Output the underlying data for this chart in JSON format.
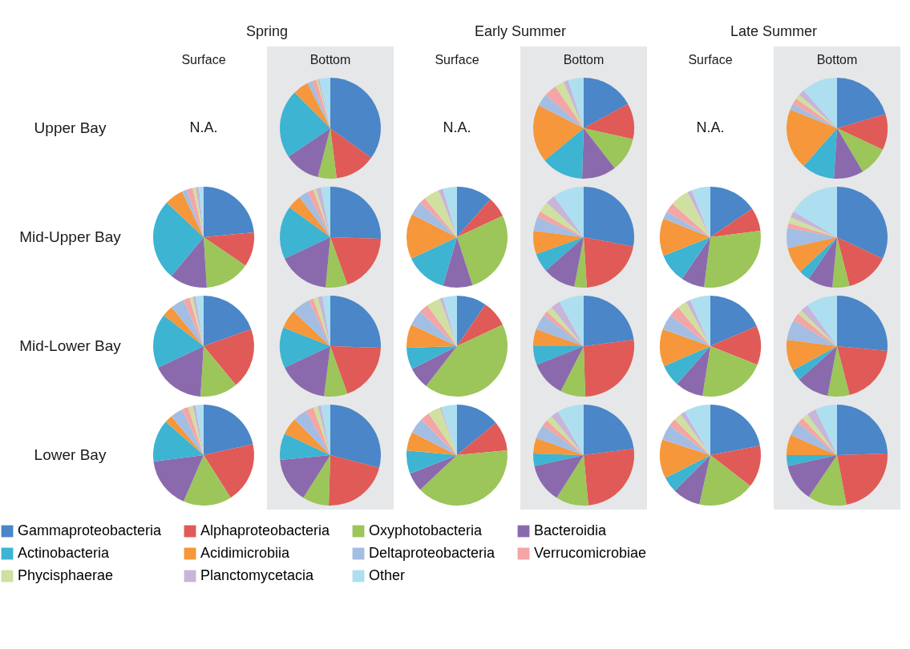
{
  "chart_data": [
    {
      "type": "other",
      "annotations": [
        "Spring",
        "Early Summer",
        "Late Summer"
      ]
    },
    {
      "type": "other",
      "title": "Surface",
      "ylabel": "Upper Bay",
      "annotations": [
        "N.A."
      ]
    },
    {
      "type": "pie",
      "title": "Bottom",
      "legend": "bottom",
      "categories": [
        "Gammaproteobacteria",
        "Alphaproteobacteria",
        "Oxyphotobacteria",
        "Bacteroidia",
        "Actinobacteria",
        "Acidimicrobiia",
        "Deltaproteobacteria",
        "Verrucomicrobiae",
        "Phycisphaerae",
        "Planctomycetacia",
        "Other"
      ],
      "colors": [
        "#4a86c8",
        "#e05a57",
        "#9cc55a",
        "#8a6aad",
        "#3cb4d2",
        "#f5973a",
        "#a4bde3",
        "#f4a5a5",
        "#cfe0a0",
        "#c7b5da",
        "#addff0"
      ],
      "values": [
        35,
        13,
        6,
        11.5,
        22,
        5,
        1.5,
        1.5,
        0.5,
        0.5,
        3.5
      ]
    },
    {
      "type": "other",
      "title": "Surface",
      "annotations": [
        "N.A."
      ]
    },
    {
      "type": "pie",
      "title": "Bottom",
      "categories": [
        null,
        null,
        null,
        null,
        null,
        null,
        null,
        null,
        null,
        null,
        null
      ],
      "colors": [
        "#4a86c8",
        "#e05a57",
        "#9cc55a",
        "#8a6aad",
        "#3cb4d2",
        "#f5973a",
        "#a4bde3",
        "#f4a5a5",
        "#cfe0a0",
        "#c7b5da",
        "#addff0"
      ],
      "values": [
        17,
        11.5,
        11,
        11,
        13.5,
        18.5,
        4,
        4,
        3,
        1.5,
        5
      ]
    },
    {
      "type": "other",
      "title": "Surface",
      "annotations": [
        "N.A."
      ]
    },
    {
      "type": "pie",
      "title": "Bottom",
      "categories": [
        null,
        null,
        null,
        null,
        null,
        null,
        null,
        null,
        null,
        null,
        null
      ],
      "colors": [
        "#4a86c8",
        "#e05a57",
        "#9cc55a",
        "#8a6aad",
        "#3cb4d2",
        "#f5973a",
        "#a4bde3",
        "#f4a5a5",
        "#cfe0a0",
        "#c7b5da",
        "#addff0"
      ],
      "values": [
        20.5,
        11.5,
        9.5,
        9.5,
        10.5,
        19.5,
        2,
        2,
        1.5,
        2,
        11.5
      ]
    },
    {
      "type": "pie",
      "ylabel": "Mid-Upper Bay",
      "categories": [
        null,
        null,
        null,
        null,
        null,
        null,
        null,
        null,
        null,
        null,
        null
      ],
      "colors": [
        "#4a86c8",
        "#e05a57",
        "#9cc55a",
        "#8a6aad",
        "#3cb4d2",
        "#f5973a",
        "#a4bde3",
        "#f4a5a5",
        "#cfe0a0",
        "#c7b5da",
        "#addff0"
      ],
      "values": [
        23.5,
        11,
        14.5,
        12,
        26,
        6,
        1.5,
        2,
        1,
        1,
        1.5
      ]
    },
    {
      "type": "pie",
      "categories": [
        null,
        null,
        null,
        null,
        null,
        null,
        null,
        null,
        null,
        null,
        null
      ],
      "colors": [
        "#4a86c8",
        "#e05a57",
        "#9cc55a",
        "#8a6aad",
        "#3cb4d2",
        "#f5973a",
        "#a4bde3",
        "#f4a5a5",
        "#cfe0a0",
        "#c7b5da",
        "#addff0"
      ],
      "values": [
        25.5,
        19,
        7,
        16.5,
        17,
        4.5,
        3,
        2,
        1,
        1.5,
        3
      ]
    },
    {
      "type": "pie",
      "categories": [
        null,
        null,
        null,
        null,
        null,
        null,
        null,
        null,
        null,
        null,
        null
      ],
      "colors": [
        "#4a86c8",
        "#e05a57",
        "#9cc55a",
        "#8a6aad",
        "#3cb4d2",
        "#f5973a",
        "#a4bde3",
        "#f4a5a5",
        "#cfe0a0",
        "#c7b5da",
        "#addff0"
      ],
      "values": [
        11.5,
        6.5,
        27,
        9.5,
        13.5,
        14.5,
        4.5,
        2,
        5,
        1.5,
        4.5
      ]
    },
    {
      "type": "pie",
      "categories": [
        null,
        null,
        null,
        null,
        null,
        null,
        null,
        null,
        null,
        null,
        null
      ],
      "colors": [
        "#4a86c8",
        "#e05a57",
        "#9cc55a",
        "#8a6aad",
        "#3cb4d2",
        "#f5973a",
        "#a4bde3",
        "#f4a5a5",
        "#cfe0a0",
        "#c7b5da",
        "#addff0"
      ],
      "values": [
        28,
        21,
        4,
        10.5,
        6,
        7.5,
        4.5,
        2,
        3.5,
        3,
        10
      ]
    },
    {
      "type": "pie",
      "categories": [
        null,
        null,
        null,
        null,
        null,
        null,
        null,
        null,
        null,
        null,
        null
      ],
      "colors": [
        "#4a86c8",
        "#e05a57",
        "#9cc55a",
        "#8a6aad",
        "#3cb4d2",
        "#f5973a",
        "#a4bde3",
        "#f4a5a5",
        "#cfe0a0",
        "#c7b5da",
        "#addff0"
      ],
      "values": [
        15.5,
        7.5,
        29,
        7.5,
        9.5,
        12,
        2.5,
        3,
        6,
        1.5,
        6
      ]
    },
    {
      "type": "pie",
      "categories": [
        null,
        null,
        null,
        null,
        null,
        null,
        null,
        null,
        null,
        null,
        null
      ],
      "colors": [
        "#4a86c8",
        "#e05a57",
        "#9cc55a",
        "#8a6aad",
        "#3cb4d2",
        "#f5973a",
        "#a4bde3",
        "#f4a5a5",
        "#cfe0a0",
        "#c7b5da",
        "#addff0"
      ],
      "values": [
        32,
        14,
        5.5,
        8,
        3.5,
        8.5,
        6.5,
        1.5,
        2,
        2,
        16.5
      ]
    },
    {
      "type": "pie",
      "ylabel": "Mid-Lower Bay",
      "categories": [
        null,
        null,
        null,
        null,
        null,
        null,
        null,
        null,
        null,
        null,
        null
      ],
      "colors": [
        "#4a86c8",
        "#e05a57",
        "#9cc55a",
        "#8a6aad",
        "#3cb4d2",
        "#f5973a",
        "#a4bde3",
        "#f4a5a5",
        "#cfe0a0",
        "#c7b5da",
        "#addff0"
      ],
      "values": [
        19.5,
        19.5,
        12,
        17,
        17.5,
        3.5,
        4.5,
        2,
        1,
        1,
        2.5
      ]
    },
    {
      "type": "pie",
      "categories": [
        null,
        null,
        null,
        null,
        null,
        null,
        null,
        null,
        null,
        null,
        null
      ],
      "colors": [
        "#4a86c8",
        "#e05a57",
        "#9cc55a",
        "#8a6aad",
        "#3cb4d2",
        "#f5973a",
        "#a4bde3",
        "#f4a5a5",
        "#cfe0a0",
        "#c7b5da",
        "#addff0"
      ],
      "values": [
        25.5,
        19,
        7.5,
        16,
        13,
        6,
        6,
        1.5,
        1.5,
        1.5,
        2.5
      ]
    },
    {
      "type": "pie",
      "categories": [
        null,
        null,
        null,
        null,
        null,
        null,
        null,
        null,
        null,
        null,
        null
      ],
      "colors": [
        "#4a86c8",
        "#e05a57",
        "#9cc55a",
        "#8a6aad",
        "#3cb4d2",
        "#f5973a",
        "#a4bde3",
        "#f4a5a5",
        "#cfe0a0",
        "#c7b5da",
        "#addff0"
      ],
      "values": [
        9.5,
        8.5,
        42.5,
        7,
        7,
        7.5,
        5,
        3,
        4.5,
        1,
        4.5
      ]
    },
    {
      "type": "pie",
      "categories": [
        null,
        null,
        null,
        null,
        null,
        null,
        null,
        null,
        null,
        null,
        null
      ],
      "colors": [
        "#4a86c8",
        "#e05a57",
        "#9cc55a",
        "#8a6aad",
        "#3cb4d2",
        "#f5973a",
        "#a4bde3",
        "#f4a5a5",
        "#cfe0a0",
        "#c7b5da",
        "#addff0"
      ],
      "values": [
        23,
        26.5,
        8,
        11.5,
        6,
        5.5,
        5,
        1.5,
        2,
        3,
        8
      ]
    },
    {
      "type": "pie",
      "categories": [
        null,
        null,
        null,
        null,
        null,
        null,
        null,
        null,
        null,
        null,
        null
      ],
      "colors": [
        "#4a86c8",
        "#e05a57",
        "#9cc55a",
        "#8a6aad",
        "#3cb4d2",
        "#f5973a",
        "#a4bde3",
        "#f4a5a5",
        "#cfe0a0",
        "#c7b5da",
        "#addff0"
      ],
      "values": [
        18.5,
        12.5,
        21.5,
        9,
        7,
        12,
        5,
        3.5,
        3,
        1.5,
        6.5
      ]
    },
    {
      "type": "pie",
      "categories": [
        null,
        null,
        null,
        null,
        null,
        null,
        null,
        null,
        null,
        null,
        null
      ],
      "colors": [
        "#4a86c8",
        "#e05a57",
        "#9cc55a",
        "#8a6aad",
        "#3cb4d2",
        "#f5973a",
        "#a4bde3",
        "#f4a5a5",
        "#cfe0a0",
        "#c7b5da",
        "#addff0"
      ],
      "values": [
        26.5,
        19.5,
        7,
        10.5,
        3.5,
        10,
        6.5,
        2.5,
        1.5,
        2.5,
        10
      ]
    },
    {
      "type": "pie",
      "ylabel": "Lower Bay",
      "categories": [
        null,
        null,
        null,
        null,
        null,
        null,
        null,
        null,
        null,
        null,
        null
      ],
      "colors": [
        "#4a86c8",
        "#e05a57",
        "#9cc55a",
        "#8a6aad",
        "#3cb4d2",
        "#f5973a",
        "#a4bde3",
        "#f4a5a5",
        "#cfe0a0",
        "#c7b5da",
        "#addff0"
      ],
      "values": [
        21.5,
        19.5,
        15.5,
        16.5,
        13.5,
        2.5,
        4,
        2,
        1.5,
        1,
        2.5
      ]
    },
    {
      "type": "pie",
      "categories": [
        null,
        null,
        null,
        null,
        null,
        null,
        null,
        null,
        null,
        null,
        null
      ],
      "colors": [
        "#4a86c8",
        "#e05a57",
        "#9cc55a",
        "#8a6aad",
        "#3cb4d2",
        "#f5973a",
        "#a4bde3",
        "#f4a5a5",
        "#cfe0a0",
        "#c7b5da",
        "#addff0"
      ],
      "values": [
        29,
        21.5,
        8.5,
        14.5,
        8.5,
        5.5,
        4.5,
        2.5,
        1.5,
        1,
        3
      ]
    },
    {
      "type": "pie",
      "categories": [
        null,
        null,
        null,
        null,
        null,
        null,
        null,
        null,
        null,
        null,
        null
      ],
      "colors": [
        "#4a86c8",
        "#e05a57",
        "#9cc55a",
        "#8a6aad",
        "#3cb4d2",
        "#f5973a",
        "#a4bde3",
        "#f4a5a5",
        "#cfe0a0",
        "#c7b5da",
        "#addff0"
      ],
      "values": [
        14,
        9.5,
        39.5,
        6,
        7.5,
        6,
        5,
        3,
        4,
        0.5,
        5
      ]
    },
    {
      "type": "pie",
      "categories": [
        null,
        null,
        null,
        null,
        null,
        null,
        null,
        null,
        null,
        null,
        null
      ],
      "colors": [
        "#4a86c8",
        "#e05a57",
        "#9cc55a",
        "#8a6aad",
        "#3cb4d2",
        "#f5973a",
        "#a4bde3",
        "#f4a5a5",
        "#cfe0a0",
        "#c7b5da",
        "#addff0"
      ],
      "values": [
        23,
        25.5,
        10.5,
        12.5,
        4,
        5,
        4.5,
        2,
        2,
        2.5,
        8.5
      ]
    },
    {
      "type": "pie",
      "categories": [
        null,
        null,
        null,
        null,
        null,
        null,
        null,
        null,
        null,
        null,
        null
      ],
      "colors": [
        "#4a86c8",
        "#e05a57",
        "#9cc55a",
        "#8a6aad",
        "#3cb4d2",
        "#f5973a",
        "#a4bde3",
        "#f4a5a5",
        "#cfe0a0",
        "#c7b5da",
        "#addff0"
      ],
      "values": [
        22,
        13.5,
        18,
        9,
        5,
        12.5,
        5,
        2.5,
        2.5,
        1.5,
        8.5
      ]
    },
    {
      "type": "pie",
      "categories": [
        null,
        null,
        null,
        null,
        null,
        null,
        null,
        null,
        null,
        null,
        null
      ],
      "colors": [
        "#4a86c8",
        "#e05a57",
        "#9cc55a",
        "#8a6aad",
        "#3cb4d2",
        "#f5973a",
        "#a4bde3",
        "#f4a5a5",
        "#cfe0a0",
        "#c7b5da",
        "#addff0"
      ],
      "values": [
        24.5,
        22.5,
        12.5,
        12,
        3.5,
        6.5,
        4.5,
        2,
        2,
        3,
        7
      ]
    }
  ]
}
